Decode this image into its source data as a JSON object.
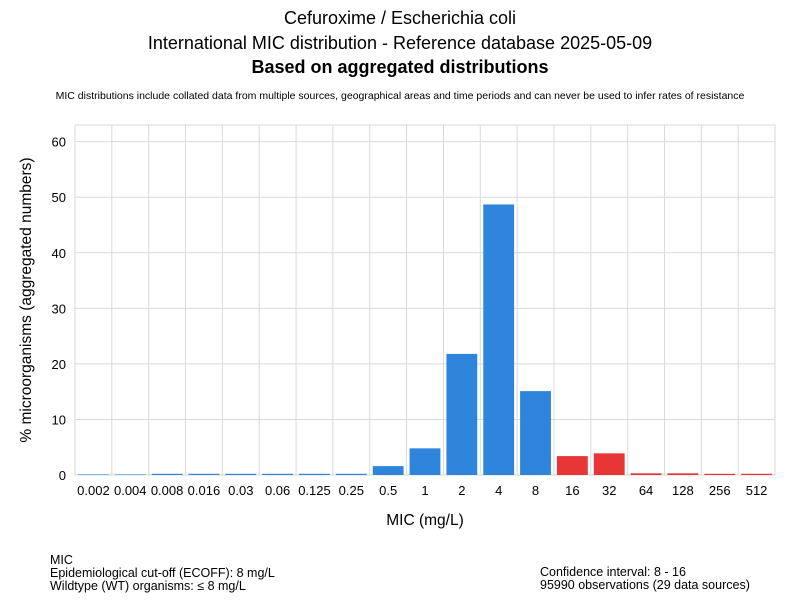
{
  "title": {
    "line1": "Cefuroxime / Escherichia coli",
    "line2": "International MIC distribution - Reference database 2025-05-09",
    "line3": "Based on aggregated distributions",
    "note": "MIC distributions include collated data from multiple sources, geographical areas and time periods and can never be used to infer rates of resistance"
  },
  "footer": {
    "left": [
      "MIC",
      "Epidemiological cut-off (ECOFF): 8 mg/L",
      "Wildtype (WT) organisms: ≤ 8 mg/L"
    ],
    "right": [
      "Confidence interval: 8 - 16",
      "95990 observations (29 data sources)"
    ]
  },
  "colors": {
    "wildtype": "#2f84db",
    "non_wildtype": "#e83535",
    "grid": "#d9d9d9"
  },
  "chart_data": {
    "type": "bar",
    "xlabel": "MIC (mg/L)",
    "ylabel": "% microorganisms (aggregated numbers)",
    "ylim": [
      0,
      63
    ],
    "yticks": [
      0,
      10,
      20,
      30,
      40,
      50,
      60
    ],
    "grid": true,
    "categories": [
      "0.002",
      "0.004",
      "0.008",
      "0.016",
      "0.03",
      "0.06",
      "0.125",
      "0.25",
      "0.5",
      "1",
      "2",
      "4",
      "8",
      "16",
      "32",
      "64",
      "128",
      "256",
      "512"
    ],
    "values": [
      0,
      0,
      0.1,
      0.1,
      0.1,
      0.1,
      0.1,
      0.1,
      1.6,
      4.8,
      21.8,
      48.7,
      15.1,
      3.4,
      3.9,
      0.3,
      0.3,
      0.1,
      0.1
    ],
    "groups": [
      "wildtype",
      "wildtype",
      "wildtype",
      "wildtype",
      "wildtype",
      "wildtype",
      "wildtype",
      "wildtype",
      "wildtype",
      "wildtype",
      "wildtype",
      "wildtype",
      "wildtype",
      "non_wildtype",
      "non_wildtype",
      "non_wildtype",
      "non_wildtype",
      "non_wildtype",
      "non_wildtype"
    ]
  }
}
